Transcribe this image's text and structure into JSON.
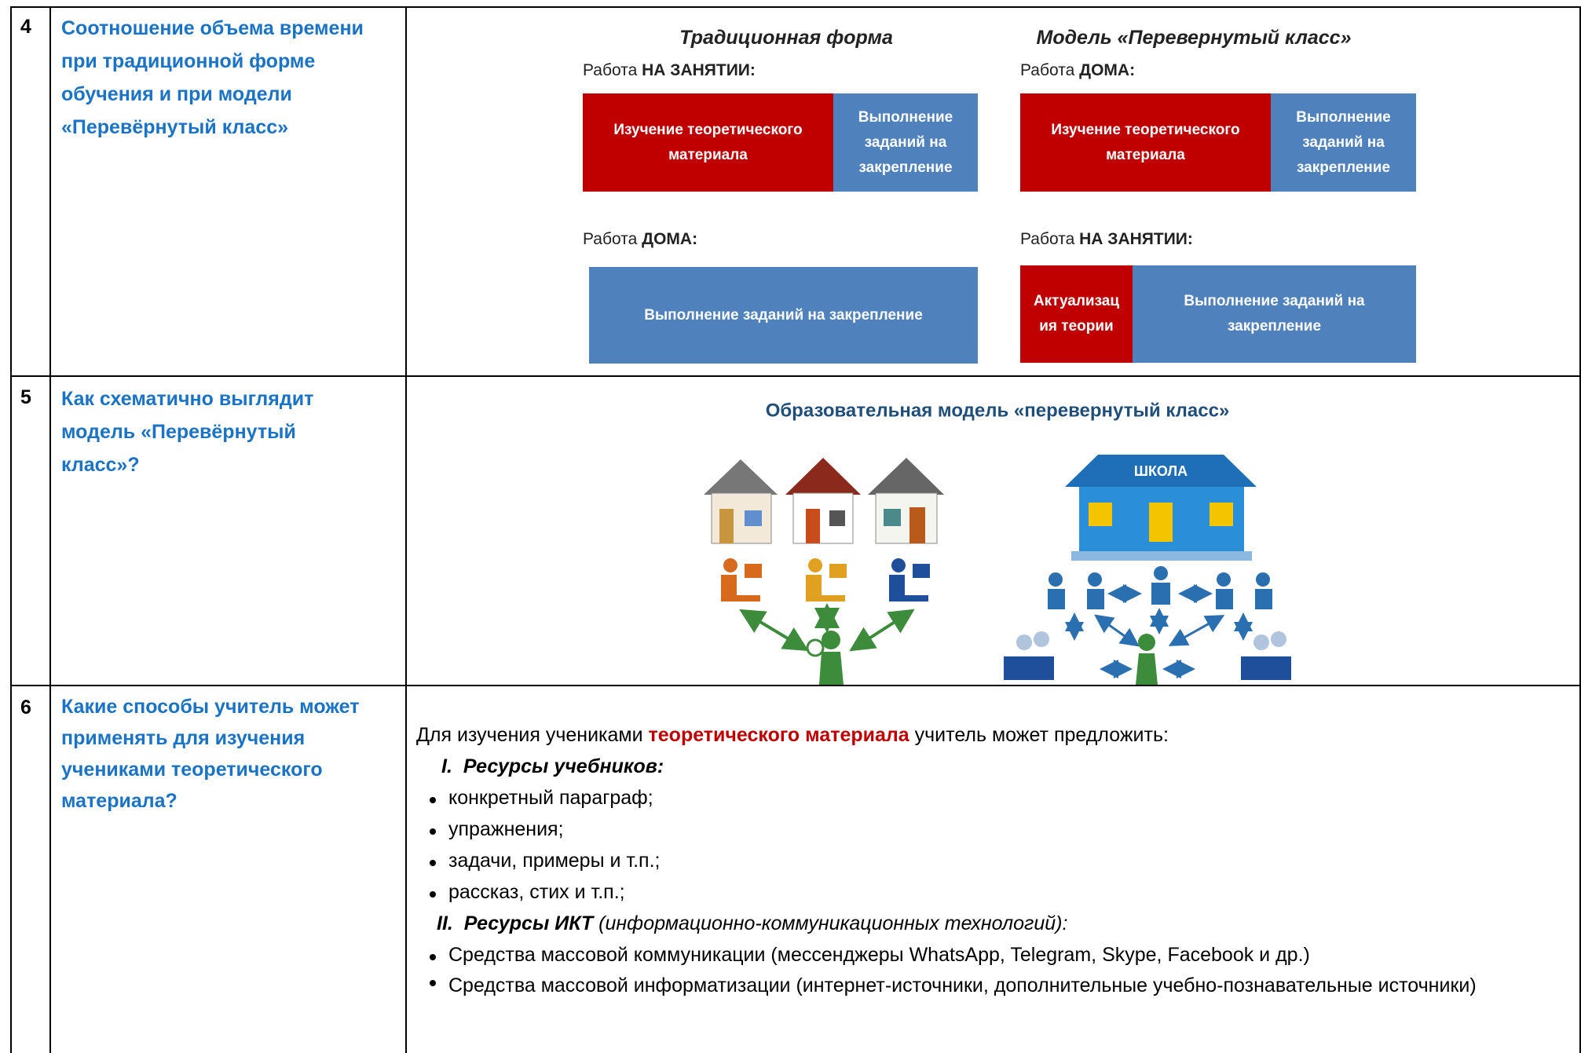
{
  "rows": [
    {
      "number": "4",
      "question": "Соотношение объема времени при традиционной форме обучения и при модели «Перевёрнутый класс»",
      "diagram": {
        "traditional": {
          "title": "Традиционная форма",
          "class_label": "Работа",
          "class_place": "НА ЗАНЯТИИ:",
          "class_blocks": [
            "Изучение теоретического материала",
            "Выполнение заданий на закрепление"
          ],
          "home_label": "Работа",
          "home_place": "ДОМА:",
          "home_blocks": [
            "Выполнение заданий на закрепление"
          ]
        },
        "flipped": {
          "title": "Модель «Перевернутый класс»",
          "home_label": "Работа",
          "home_place": "ДОМА:",
          "home_blocks": [
            "Изучение теоретического материала",
            "Выполнение заданий на закрепление"
          ],
          "class_label": "Работа",
          "class_place": "НА ЗАНЯТИИ:",
          "class_blocks": [
            "Актуализация теории",
            "Выполнение заданий на закрепление"
          ]
        }
      }
    },
    {
      "number": "5",
      "question": "Как схематично выглядит модель «Перевёрнутый класс»?",
      "diagram": {
        "title": "Образовательная модель «перевернутый класс»",
        "school_sign": "ШКОЛА"
      }
    },
    {
      "number": "6",
      "question": "Какие способы учитель может применять для изучения учениками теоретического материала?",
      "intro": {
        "before": "Для изучения учениками",
        "highlight": "теоретического материала",
        "after": "учитель может предложить:"
      },
      "sections": [
        {
          "numeral": "I.",
          "heading": "Ресурсы учебников:",
          "items": [
            "конкретный параграф;",
            "упражнения;",
            "задачи, примеры и т.п.;",
            "рассказ, стих и т.п.;"
          ]
        },
        {
          "numeral": "II.",
          "heading": "Ресурсы ИКТ",
          "note": "(информационно-коммуникационных технологий):",
          "items": [
            "Средства массовой коммуникации (мессенджеры WhatsApp, Telegram, Skype, Facebook и др.)",
            "Средства массовой информатизации (интернет-источники, дополнительные учебно-познавательные источники)"
          ]
        }
      ]
    }
  ]
}
